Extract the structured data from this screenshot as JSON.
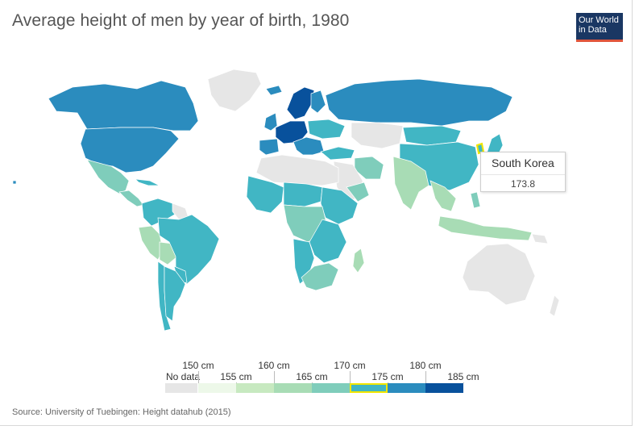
{
  "title": "Average height of men by year of birth, 1980",
  "logo": {
    "line1": "Our World",
    "line2": "in Data"
  },
  "source": "Source: University of Tuebingen: Height datahub (2015)",
  "tooltip": {
    "country": "South Korea",
    "value": "173.8"
  },
  "legend": {
    "no_data_label": "No data",
    "no_data_color": "#e6e6e6",
    "top_labels": [
      "150 cm",
      "160 cm",
      "170 cm",
      "180 cm"
    ],
    "bottom_labels": [
      "155 cm",
      "165 cm",
      "175 cm",
      "185 cm"
    ],
    "bins": [
      {
        "range": "150-155",
        "color": "#edf8e9"
      },
      {
        "range": "155-160",
        "color": "#c7e9c0"
      },
      {
        "range": "160-165",
        "color": "#a8dcb5"
      },
      {
        "range": "165-170",
        "color": "#7fcdbb"
      },
      {
        "range": "170-175",
        "color": "#41b6c4",
        "highlighted": true
      },
      {
        "range": "175-180",
        "color": "#2b8cbe"
      },
      {
        "range": "180-185",
        "color": "#08519c"
      }
    ],
    "highlight_color": "#f2e600"
  },
  "colors": {
    "no_data": "#e6e6e6",
    "border": "#ffffff"
  }
}
